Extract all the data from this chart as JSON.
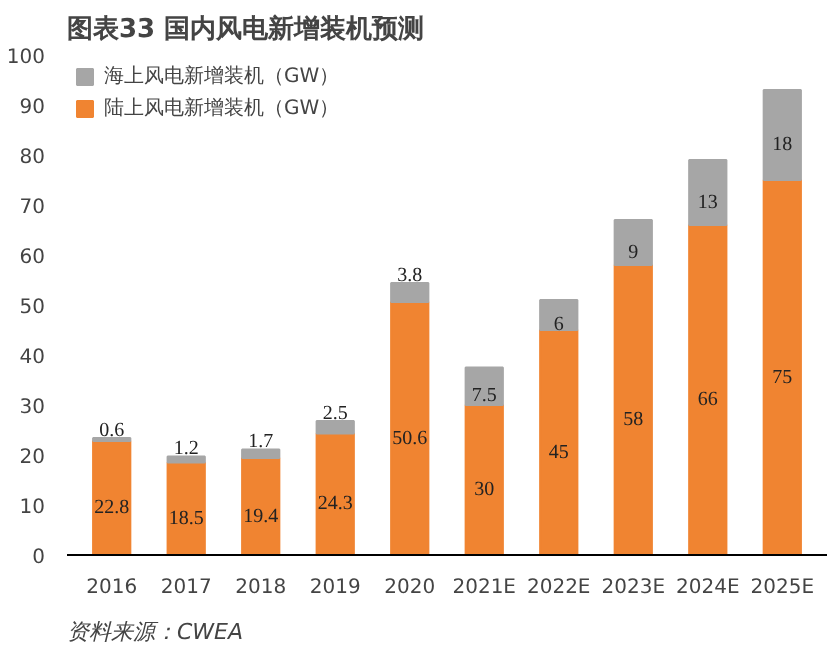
{
  "chart_data": {
    "type": "bar",
    "title": "图表33    国内风电新增装机预测",
    "stacked": true,
    "categories": [
      "2016",
      "2017",
      "2018",
      "2019",
      "2020",
      "2021E",
      "2022E",
      "2023E",
      "2024E",
      "2025E"
    ],
    "series": [
      {
        "name": "陆上风电新增装机（GW）",
        "color": "#f08431",
        "values": [
          22.8,
          18.5,
          19.4,
          24.3,
          50.6,
          30,
          45,
          58,
          66,
          75
        ]
      },
      {
        "name": "海上风电新增装机（GW）",
        "color": "#a6a6a6",
        "values": [
          0.6,
          1.2,
          1.7,
          2.5,
          3.8,
          7.5,
          6,
          9,
          13,
          18
        ]
      }
    ],
    "ylim": [
      0,
      100
    ],
    "yticks": [
      0,
      10,
      20,
      30,
      40,
      50,
      60,
      70,
      80,
      90,
      100
    ],
    "data_labels": true,
    "legend": "top left",
    "grid": false,
    "annotations": [
      "资料来源：CWEA"
    ]
  }
}
